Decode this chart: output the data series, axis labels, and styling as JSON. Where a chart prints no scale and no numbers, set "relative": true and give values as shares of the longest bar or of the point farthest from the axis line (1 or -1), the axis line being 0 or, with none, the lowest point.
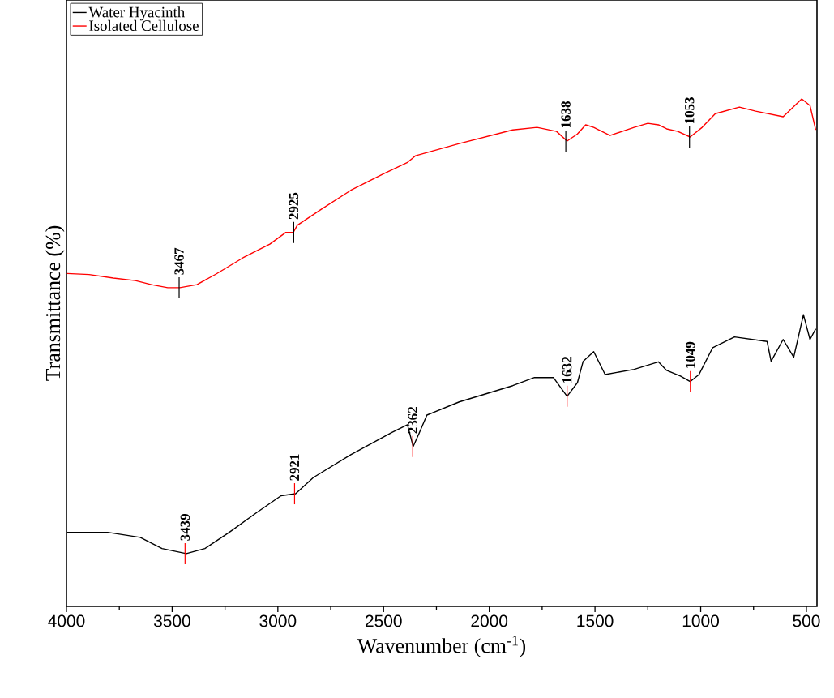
{
  "chart_data": {
    "type": "line",
    "relative": true,
    "xlabel": "Wavenumber (cm$^{-1}$)",
    "ylabel": "Transmittance (%)",
    "xlim": [
      4000,
      450
    ],
    "xticks": [
      4000,
      3500,
      3000,
      2500,
      2000,
      1500,
      1000,
      500
    ],
    "legend": "top left",
    "grid": false,
    "tick_labels": "x",
    "series": [
      {
        "name": "Water Hyacinth",
        "color": "#000000",
        "x": [
          3996,
          3805,
          3651,
          3548,
          3433,
          3345,
          3230,
          3100,
          2985,
          2916,
          2832,
          2655,
          2464,
          2387,
          2360,
          2334,
          2295,
          2142,
          1889,
          1786,
          1697,
          1632,
          1583,
          1556,
          1506,
          1452,
          1315,
          1200,
          1161,
          1096,
          1050,
          1008,
          943,
          840,
          686,
          667,
          610,
          560,
          514,
          483,
          456
        ],
        "values": [
          0.146,
          0.146,
          0.136,
          0.114,
          0.104,
          0.114,
          0.146,
          0.185,
          0.218,
          0.222,
          0.254,
          0.299,
          0.342,
          0.358,
          0.315,
          0.339,
          0.377,
          0.403,
          0.435,
          0.451,
          0.451,
          0.414,
          0.441,
          0.483,
          0.502,
          0.457,
          0.467,
          0.482,
          0.465,
          0.454,
          0.443,
          0.457,
          0.51,
          0.531,
          0.522,
          0.483,
          0.526,
          0.491,
          0.575,
          0.526,
          0.547
        ]
      },
      {
        "name": "Isolated Cellulose",
        "color": "#ff0000",
        "x": [
          3997,
          3893,
          3778,
          3674,
          3598,
          3521,
          3464,
          3383,
          3292,
          3165,
          3038,
          2962,
          2927,
          2908,
          2793,
          2655,
          2502,
          2387,
          2349,
          2142,
          1889,
          1774,
          1682,
          1632,
          1583,
          1544,
          1506,
          1429,
          1315,
          1250,
          1200,
          1161,
          1108,
          1050,
          993,
          931,
          817,
          740,
          610,
          522,
          483,
          456
        ],
        "values": [
          0.656,
          0.654,
          0.647,
          0.642,
          0.634,
          0.628,
          0.628,
          0.634,
          0.655,
          0.687,
          0.714,
          0.737,
          0.737,
          0.751,
          0.783,
          0.82,
          0.852,
          0.875,
          0.888,
          0.912,
          0.939,
          0.944,
          0.936,
          0.917,
          0.931,
          0.949,
          0.944,
          0.928,
          0.944,
          0.952,
          0.949,
          0.941,
          0.936,
          0.925,
          0.944,
          0.971,
          0.984,
          0.976,
          0.965,
          1.0,
          0.987,
          0.939
        ]
      }
    ],
    "annotations": [
      {
        "text": "3467",
        "x": 3467,
        "y": 0.628
      },
      {
        "text": "2925",
        "x": 2925,
        "y": 0.737
      },
      {
        "text": "1638",
        "x": 1638,
        "y": 0.917
      },
      {
        "text": "1053",
        "x": 1053,
        "y": 0.925
      },
      {
        "text": "3439",
        "x": 3439,
        "y": 0.104
      },
      {
        "text": "2921",
        "x": 2921,
        "y": 0.222
      },
      {
        "text": "2362",
        "x": 2362,
        "y": 0.315
      },
      {
        "text": "1632",
        "x": 1632,
        "y": 0.414
      },
      {
        "text": "1049",
        "x": 1049,
        "y": 0.443
      }
    ]
  }
}
